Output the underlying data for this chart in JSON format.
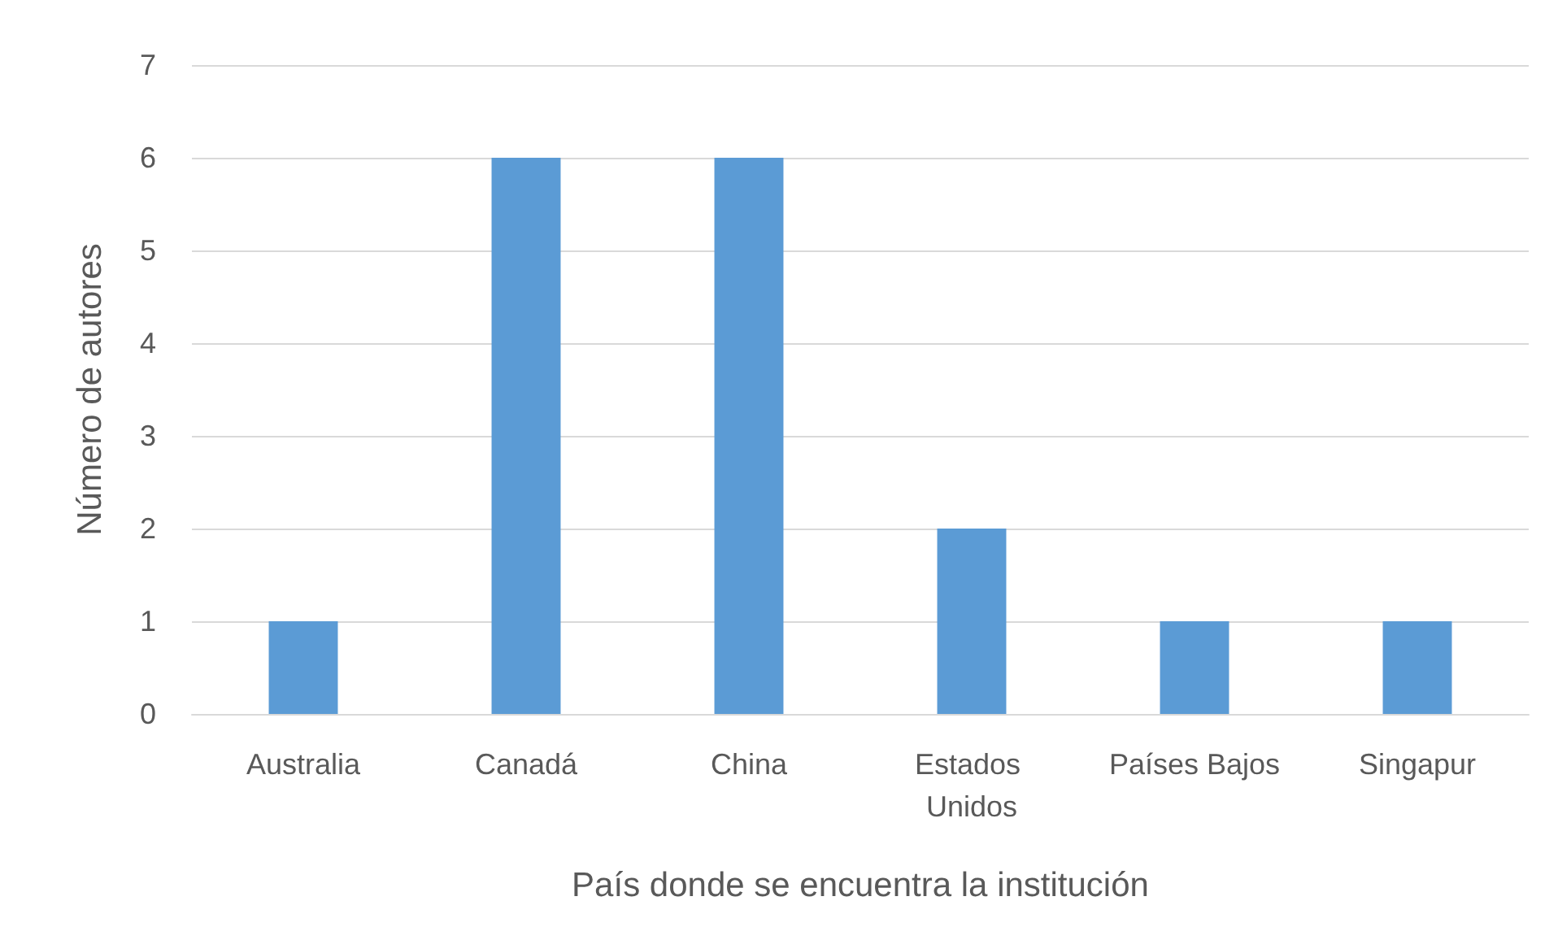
{
  "chart_data": {
    "type": "bar",
    "xlabel": "País donde se encuentra la institución",
    "ylabel": "Número de autores",
    "categories": [
      "Australia",
      "Canadá",
      "China",
      "Estados Unidos",
      "Países Bajos",
      "Singapur"
    ],
    "values": [
      1,
      6,
      6,
      2,
      1,
      1
    ],
    "color": "#5b9bd5",
    "ylim": [
      0,
      7
    ],
    "yticks": [
      0,
      1,
      2,
      3,
      4,
      5,
      6,
      7
    ],
    "grid": "y"
  }
}
